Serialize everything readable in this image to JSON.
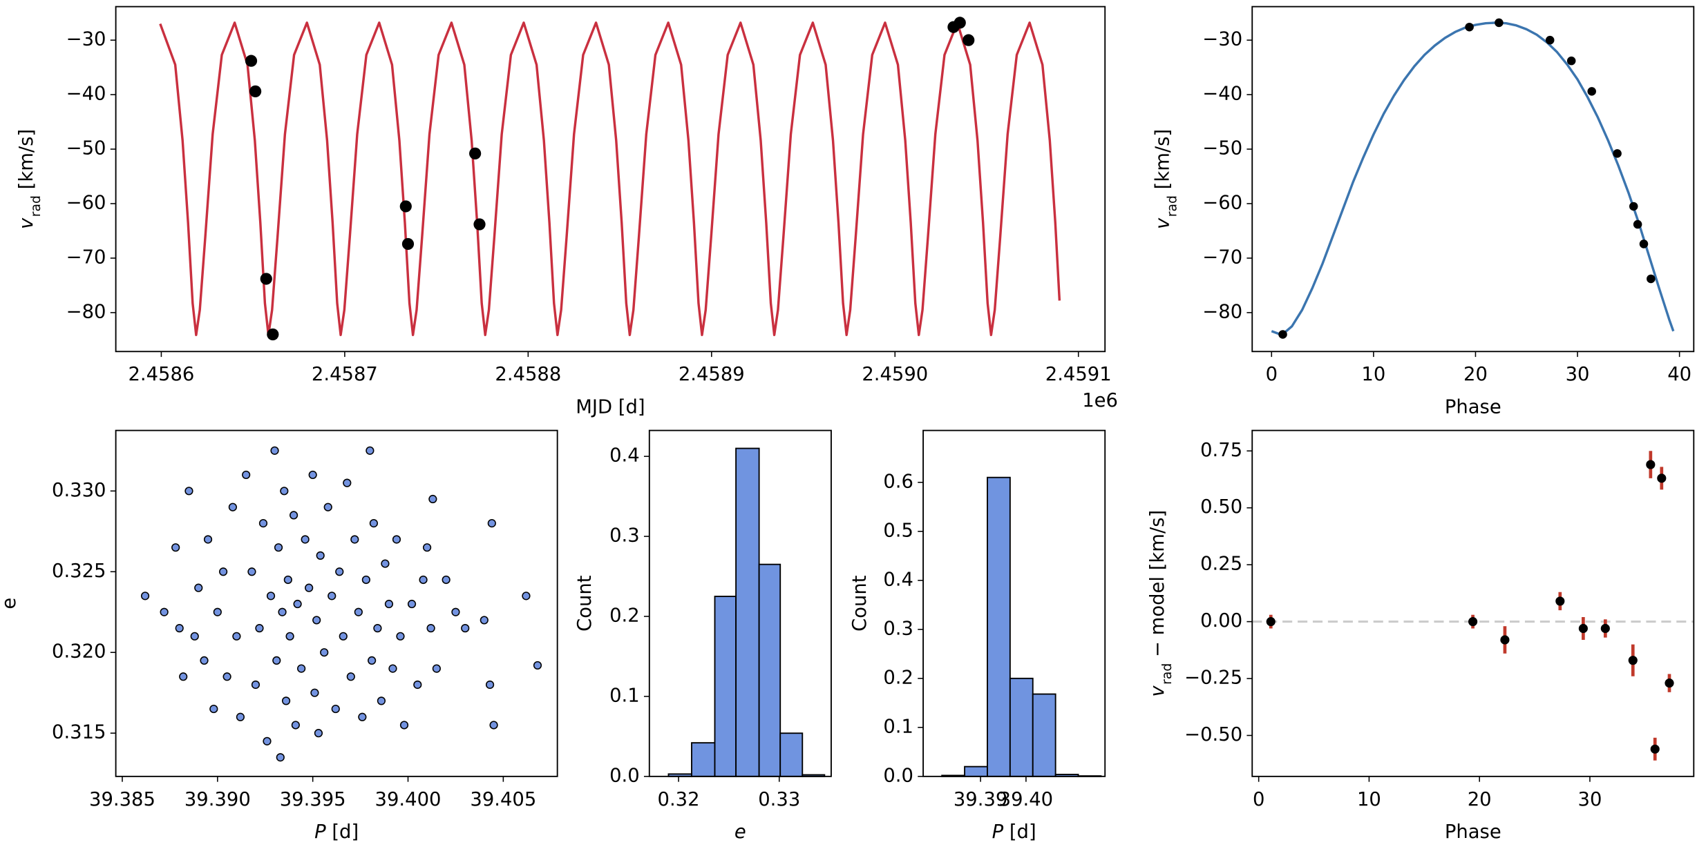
{
  "chart_data": [
    {
      "type": "line",
      "xlabel": "MJD [d]",
      "x_offset_label": "1e6",
      "ylabel": [
        {
          "text": "v",
          "style": "italic"
        },
        {
          "text": "rad",
          "style": "sub"
        },
        {
          "text": " [km/s]"
        }
      ],
      "xlim": [
        2458575.2,
        2459114.5
      ],
      "ylim": [
        -87.14,
        -23.85
      ],
      "xticks": [
        {
          "value": 2458600,
          "label": "2.4586"
        },
        {
          "value": 2458700,
          "label": "2.4587"
        },
        {
          "value": 2458800,
          "label": "2.4588"
        },
        {
          "value": 2458900,
          "label": "2.4589"
        },
        {
          "value": 2459000,
          "label": "2.4590"
        },
        {
          "value": 2459100,
          "label": "2.4591"
        }
      ],
      "yticks": [
        {
          "value": -30,
          "label": "−30"
        },
        {
          "value": -40,
          "label": "−40"
        },
        {
          "value": -50,
          "label": "−50"
        },
        {
          "value": -60,
          "label": "−60"
        },
        {
          "value": -70,
          "label": "−70"
        },
        {
          "value": -80,
          "label": "−80"
        }
      ],
      "series": [
        {
          "style": "line",
          "color": "#c9303f",
          "x": [
            2458599.4,
            2458607.6,
            2458611.6,
            2458614.6,
            2458617.1,
            2458619.0,
            2458621.0,
            2458624.0,
            2458628.0,
            2458633.0,
            2458640.0,
            2458647.0,
            2458651.0,
            2458654.0,
            2458656.5,
            2458658.4,
            2458660.4,
            2458663.4,
            2458667.4,
            2458672.4,
            2458679.4,
            2458686.4,
            2458690.4,
            2458693.4,
            2458695.9,
            2458697.8,
            2458699.8,
            2458702.8,
            2458706.8,
            2458711.8,
            2458718.8,
            2458725.8,
            2458729.8,
            2458732.8,
            2458735.3,
            2458737.2,
            2458739.2,
            2458742.2,
            2458746.2,
            2458751.2,
            2458758.2,
            2458765.2,
            2458769.2,
            2458772.2,
            2458774.7,
            2458776.6,
            2458778.6,
            2458781.6,
            2458785.6,
            2458790.6,
            2458797.6,
            2458804.6,
            2458808.6,
            2458811.6,
            2458814.1,
            2458816.0,
            2458818.0,
            2458821.0,
            2458825.0,
            2458830.0,
            2458837.0,
            2458844.0,
            2458848.0,
            2458851.0,
            2458853.5,
            2458855.4,
            2458857.4,
            2458860.4,
            2458864.4,
            2458869.4,
            2458876.4,
            2458883.4,
            2458887.4,
            2458890.4,
            2458892.9,
            2458894.8,
            2458896.8,
            2458899.8,
            2458903.8,
            2458908.8,
            2458915.8,
            2458922.8,
            2458926.8,
            2458929.8,
            2458932.3,
            2458934.2,
            2458936.2,
            2458939.2,
            2458943.2,
            2458948.2,
            2458955.2,
            2458962.2,
            2458966.2,
            2458969.2,
            2458971.7,
            2458973.6,
            2458975.6,
            2458978.6,
            2458982.6,
            2458987.6,
            2458994.6,
            2459001.6,
            2459005.6,
            2459008.6,
            2459011.1,
            2459013.0,
            2459015.0,
            2459018.0,
            2459022.0,
            2459027.0,
            2459034.0,
            2459041.0,
            2459045.0,
            2459048.0,
            2459050.5,
            2459052.4,
            2459054.4,
            2459057.4,
            2459061.4,
            2459066.4,
            2459073.4,
            2459080.4,
            2459084.4,
            2459087.4,
            2459089.7
          ],
          "values": [
            -27.0,
            -34.5,
            -48.4,
            -63.5,
            -78.3,
            -84.1,
            -79.5,
            -66,
            -47.3,
            -32.7,
            -26.8,
            -34.5,
            -48.4,
            -63.5,
            -78.3,
            -84.1,
            -79.5,
            -66,
            -47.3,
            -32.7,
            -26.8,
            -34.5,
            -48.4,
            -63.5,
            -78.3,
            -84.1,
            -79.5,
            -66,
            -47.3,
            -32.7,
            -26.8,
            -34.5,
            -48.4,
            -63.5,
            -78.3,
            -84.1,
            -79.5,
            -66,
            -47.3,
            -32.7,
            -26.8,
            -34.5,
            -48.4,
            -63.5,
            -78.3,
            -84.1,
            -79.5,
            -66,
            -47.3,
            -32.7,
            -26.8,
            -34.5,
            -48.4,
            -63.5,
            -78.3,
            -84.1,
            -79.5,
            -66,
            -47.3,
            -32.7,
            -26.8,
            -34.5,
            -48.4,
            -63.5,
            -78.3,
            -84.1,
            -79.5,
            -66,
            -47.3,
            -32.7,
            -26.8,
            -34.5,
            -48.4,
            -63.5,
            -78.3,
            -84.1,
            -79.5,
            -66,
            -47.3,
            -32.7,
            -26.8,
            -34.5,
            -48.4,
            -63.5,
            -78.3,
            -84.1,
            -79.5,
            -66,
            -47.3,
            -32.7,
            -26.8,
            -34.5,
            -48.4,
            -63.5,
            -78.3,
            -84.1,
            -79.5,
            -66,
            -47.3,
            -32.7,
            -26.8,
            -34.5,
            -48.4,
            -63.5,
            -78.3,
            -84.1,
            -79.5,
            -66,
            -47.3,
            -32.7,
            -26.8,
            -34.5,
            -48.4,
            -63.5,
            -78.3,
            -84.1,
            -79.5,
            -66,
            -47.3,
            -32.7,
            -26.8,
            -34.5,
            -48.4,
            -63.5,
            -77.8
          ]
        },
        {
          "style": "points",
          "color": "#000000",
          "x": [
            2458649.0,
            2458651.3,
            2458657.2,
            2458660.8,
            2458733.3,
            2458734.5,
            2458771.1,
            2458773.5,
            2459031.9,
            2459035.4,
            2459040.1
          ],
          "values": [
            -33.8,
            -39.4,
            -73.8,
            -84,
            -60.5,
            -67.4,
            -50.8,
            -63.8,
            -27.6,
            -26.8,
            -30
          ]
        }
      ]
    },
    {
      "type": "line",
      "xlabel": "Phase",
      "ylabel": [
        {
          "text": "v",
          "style": "italic"
        },
        {
          "text": "rad",
          "style": "sub"
        },
        {
          "text": " [km/s]"
        }
      ],
      "xlim": [
        -1.9,
        41.4
      ],
      "ylim": [
        -87.14,
        -23.85
      ],
      "xticks": [
        0,
        10,
        20,
        30,
        40
      ],
      "yticks": [
        {
          "value": -30,
          "label": "−30"
        },
        {
          "value": -40,
          "label": "−40"
        },
        {
          "value": -50,
          "label": "−50"
        },
        {
          "value": -60,
          "label": "−60"
        },
        {
          "value": -70,
          "label": "−70"
        },
        {
          "value": -80,
          "label": "−80"
        }
      ],
      "series": [
        {
          "style": "line",
          "color": "#3b75af",
          "x": [
            0,
            1,
            2,
            3,
            4,
            5,
            6,
            7,
            8,
            9,
            10,
            11,
            12,
            13,
            14,
            15,
            16,
            17,
            18,
            19,
            20,
            21,
            22,
            23,
            24,
            25,
            26,
            27,
            28,
            29,
            30,
            31,
            32,
            33,
            34,
            35,
            36,
            37,
            38,
            39,
            39.4
          ],
          "values": [
            -83.4,
            -84.1,
            -82.5,
            -79.5,
            -75.5,
            -71,
            -66,
            -61,
            -56,
            -51.5,
            -47.3,
            -43.5,
            -40.2,
            -37.3,
            -34.8,
            -32.7,
            -31,
            -29.6,
            -28.5,
            -27.7,
            -27.2,
            -26.9,
            -26.8,
            -26.9,
            -27.3,
            -28,
            -29,
            -30.4,
            -32.2,
            -34.5,
            -37.2,
            -40.5,
            -44.2,
            -48.4,
            -53,
            -58,
            -63.5,
            -69.5,
            -75.5,
            -81.3,
            -83.4
          ]
        },
        {
          "style": "points",
          "color": "#000000",
          "x": [
            1.1,
            19.4,
            22.3,
            27.3,
            29.4,
            31.4,
            33.9,
            35.5,
            35.9,
            36.5,
            37.2
          ],
          "values": [
            -84,
            -27.6,
            -26.8,
            -30,
            -33.8,
            -39.4,
            -50.8,
            -60.5,
            -63.8,
            -67.4,
            -73.8
          ]
        }
      ]
    },
    {
      "type": "scatter",
      "color": "#7393e0",
      "xlabel": [
        {
          "text": "P",
          "style": "italic"
        },
        {
          "text": " [d]"
        }
      ],
      "ylabel": "e",
      "xlim": [
        39.38466,
        39.40784
      ],
      "ylim": [
        0.31232,
        0.33375
      ],
      "xticks": [
        39.385,
        {
          "value": 39.39,
          "label": "39.390"
        },
        39.395,
        {
          "value": 39.4,
          "label": "39.400"
        },
        39.405
      ],
      "yticks": [
        0.315,
        {
          "value": 0.32,
          "label": "0.320"
        },
        0.325,
        {
          "value": 0.33,
          "label": "0.330"
        }
      ],
      "x": [
        39.3862,
        39.3872,
        39.3878,
        39.388,
        39.3882,
        39.3885,
        39.3888,
        39.389,
        39.3893,
        39.3895,
        39.3898,
        39.39,
        39.3903,
        39.3905,
        39.3908,
        39.391,
        39.3912,
        39.3915,
        39.3918,
        39.392,
        39.3922,
        39.3924,
        39.3926,
        39.3928,
        39.393,
        39.3931,
        39.3932,
        39.3933,
        39.3934,
        39.3935,
        39.3936,
        39.3937,
        39.3938,
        39.394,
        39.3941,
        39.3942,
        39.3944,
        39.3946,
        39.3948,
        39.395,
        39.3951,
        39.3952,
        39.3953,
        39.3954,
        39.3956,
        39.3958,
        39.396,
        39.3962,
        39.3964,
        39.3966,
        39.3968,
        39.397,
        39.3972,
        39.3974,
        39.3976,
        39.3978,
        39.398,
        39.3981,
        39.3982,
        39.3984,
        39.3986,
        39.3988,
        39.399,
        39.3992,
        39.3994,
        39.3996,
        39.3998,
        39.4002,
        39.4005,
        39.4008,
        39.401,
        39.4012,
        39.4013,
        39.4015,
        39.402,
        39.4025,
        39.403,
        39.404,
        39.4043,
        39.4044,
        39.4045,
        39.4062,
        39.4068
      ],
      "values": [
        0.3235,
        0.3225,
        0.3265,
        0.3215,
        0.3185,
        0.33,
        0.321,
        0.324,
        0.3195,
        0.327,
        0.3165,
        0.3225,
        0.325,
        0.3185,
        0.329,
        0.321,
        0.316,
        0.331,
        0.325,
        0.318,
        0.3215,
        0.328,
        0.3145,
        0.3235,
        0.3325,
        0.3195,
        0.3265,
        0.3135,
        0.3225,
        0.33,
        0.317,
        0.3245,
        0.321,
        0.3285,
        0.3155,
        0.323,
        0.319,
        0.327,
        0.324,
        0.331,
        0.3175,
        0.322,
        0.315,
        0.326,
        0.32,
        0.329,
        0.3235,
        0.3165,
        0.325,
        0.321,
        0.3305,
        0.3185,
        0.327,
        0.3225,
        0.316,
        0.3245,
        0.3325,
        0.3195,
        0.328,
        0.3215,
        0.317,
        0.3255,
        0.323,
        0.319,
        0.327,
        0.321,
        0.3155,
        0.323,
        0.318,
        0.3245,
        0.3265,
        0.3215,
        0.3295,
        0.319,
        0.3245,
        0.3225,
        0.3215,
        0.322,
        0.318,
        0.328,
        0.3155,
        0.3235,
        0.3192
      ]
    },
    {
      "type": "histogram",
      "color": "#7094e0",
      "xlabel": [
        {
          "text": "e",
          "style": "italic"
        }
      ],
      "ylabel": "Count",
      "xlim": [
        0.3171,
        0.33516
      ],
      "ylim": [
        0,
        0.4324
      ],
      "xticks": [
        0.32,
        0.33
      ],
      "yticks": [
        {
          "value": 0,
          "label": "0.0"
        },
        0.1,
        0.2,
        0.3,
        0.4
      ],
      "bins": [
        0.319,
        0.3213,
        0.3236,
        0.3257,
        0.328,
        0.3301,
        0.3323,
        0.3345
      ],
      "values": [
        0.003,
        0.042,
        0.225,
        0.41,
        0.265,
        0.054,
        0.002
      ]
    },
    {
      "type": "histogram",
      "color": "#7094e0",
      "xlabel": [
        {
          "text": "P",
          "style": "italic"
        },
        {
          "text": " [d]"
        }
      ],
      "ylabel": "Count",
      "xlim": [
        39.37738,
        39.41738
      ],
      "ylim": [
        0,
        0.7059
      ],
      "xticks": [
        39.39,
        {
          "value": 39.4,
          "label": "39.40"
        }
      ],
      "yticks": [
        {
          "value": 0,
          "label": "0.0"
        },
        0.1,
        0.2,
        0.3,
        0.4,
        0.5,
        0.6
      ],
      "bins": [
        39.3815,
        39.3865,
        39.3915,
        39.3965,
        39.4015,
        39.4065,
        39.4115,
        39.4165
      ],
      "values": [
        0.002,
        0.02,
        0.61,
        0.2,
        0.168,
        0.004,
        0.001
      ]
    },
    {
      "type": "errorbar",
      "color": "#000000",
      "error_color": "#c0392b",
      "hline": 0,
      "xlabel": "Phase",
      "ylabel": [
        {
          "text": "v",
          "style": "italic"
        },
        {
          "text": "rad",
          "style": "sub"
        },
        {
          "text": " − model [km/s]"
        }
      ],
      "xlim": [
        -0.59,
        39.41
      ],
      "ylim": [
        -0.68,
        0.84
      ],
      "xticks": [
        0,
        10,
        20,
        30
      ],
      "yticks": [
        {
          "value": -0.5,
          "label": "−0.50"
        },
        {
          "value": -0.25,
          "label": "−0.25"
        },
        {
          "value": 0,
          "label": "0.00"
        },
        0.25,
        {
          "value": 0.5,
          "label": "0.50"
        },
        0.75
      ],
      "x": [
        1.1,
        19.4,
        22.3,
        27.3,
        29.4,
        31.4,
        33.9,
        35.5,
        35.9,
        36.5,
        37.2
      ],
      "values": [
        0,
        0,
        -0.08,
        0.09,
        -0.03,
        -0.03,
        -0.17,
        0.69,
        -0.56,
        0.63,
        -0.27
      ],
      "errors": [
        0.03,
        0.03,
        0.06,
        0.04,
        0.05,
        0.04,
        0.07,
        0.06,
        0.05,
        0.05,
        0.04
      ]
    }
  ]
}
